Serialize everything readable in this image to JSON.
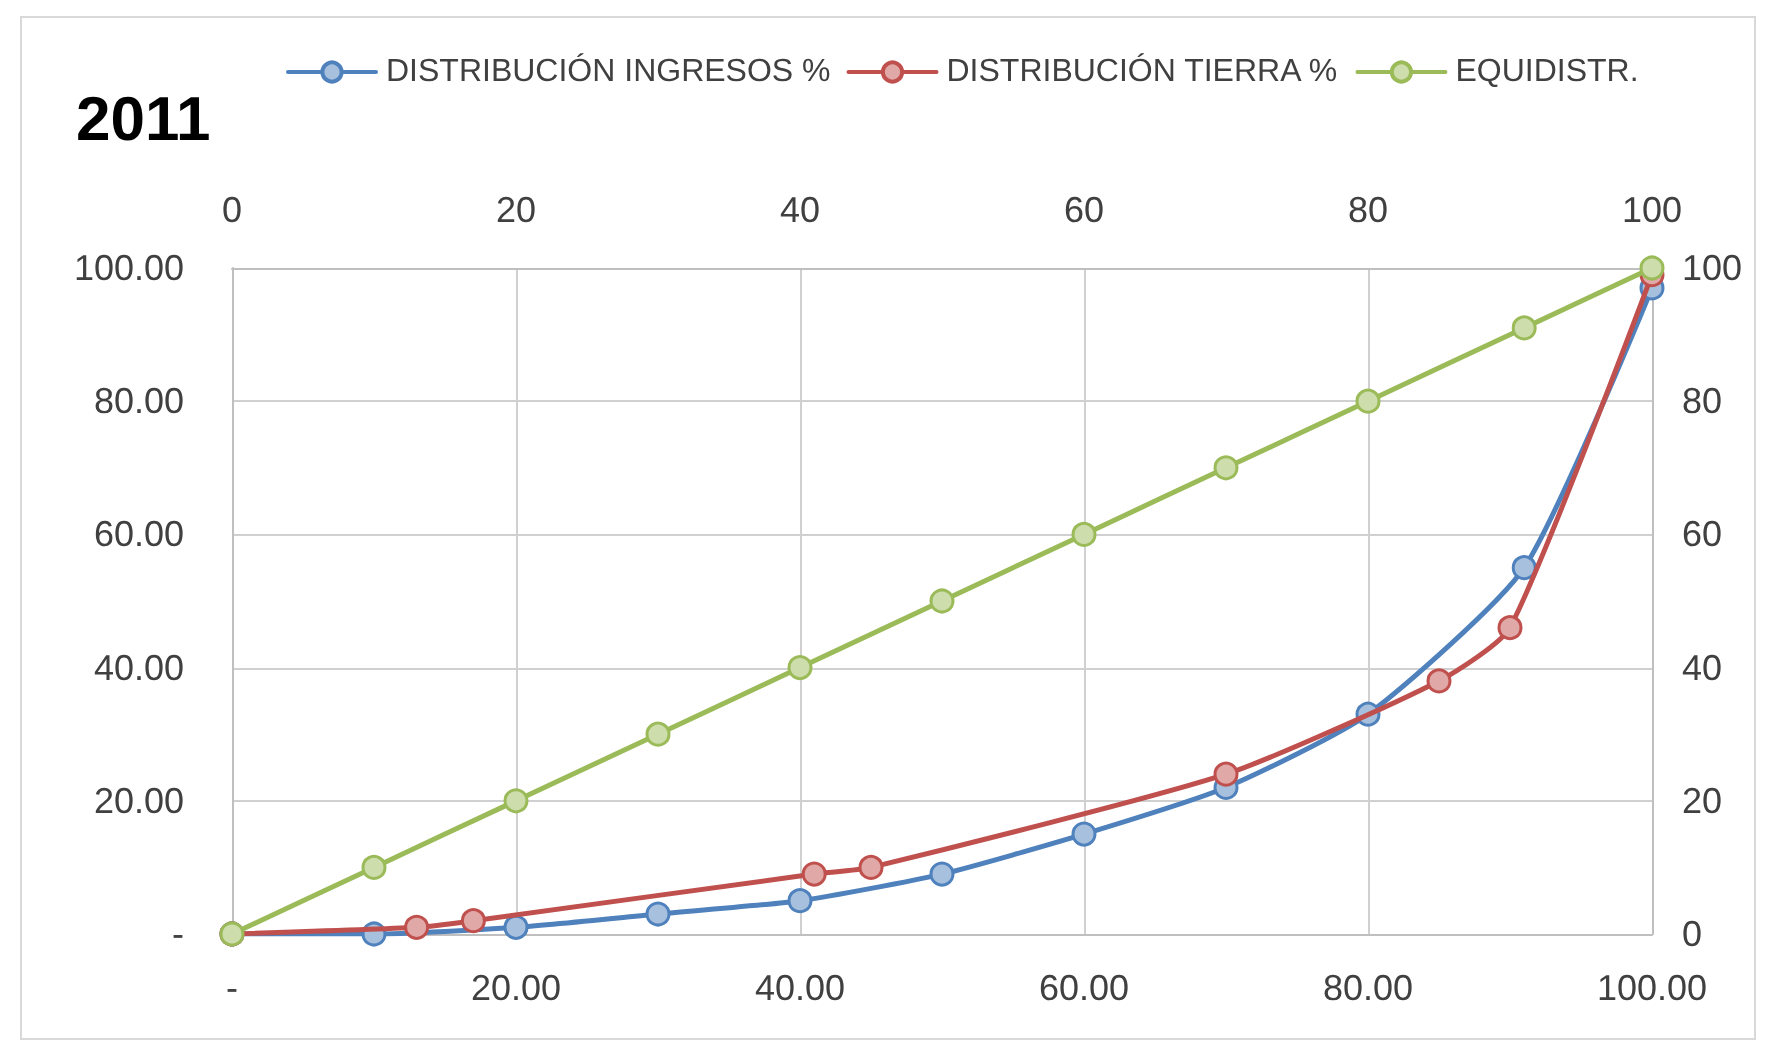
{
  "chart_data": {
    "type": "line",
    "title": "2011",
    "x": [
      0,
      10,
      20,
      30,
      40,
      50,
      60,
      70,
      80,
      91,
      100
    ],
    "series": [
      {
        "name": "DISTRIBUCIÓN INGRESOS %",
        "color": "#4f81bd",
        "values": [
          0,
          0,
          1,
          3,
          5,
          9,
          15,
          22,
          33,
          55,
          97
        ]
      },
      {
        "name": "DISTRIBUCIÓN TIERRA %",
        "color": "#c0504d",
        "x": [
          0,
          13,
          17,
          41,
          45,
          70,
          85,
          90,
          100
        ],
        "values": [
          0,
          1,
          2,
          9,
          10,
          24,
          38,
          46,
          99
        ]
      },
      {
        "name": "EQUIDISTR.",
        "color": "#9bbb59",
        "values": [
          0,
          10,
          20,
          30,
          40,
          50,
          60,
          70,
          80,
          91,
          100
        ]
      }
    ],
    "xlim": [
      0,
      100
    ],
    "xticks": [
      {
        "value": 0,
        "label": "-"
      },
      {
        "value": 20,
        "label": "20.00"
      },
      {
        "value": 40,
        "label": "40.00"
      },
      {
        "value": 60,
        "label": "60.00"
      },
      {
        "value": 80,
        "label": "80.00"
      },
      {
        "value": 100,
        "label": "100.00"
      }
    ],
    "x2lim": [
      0,
      100
    ],
    "x2ticks": [
      0,
      20,
      40,
      60,
      80,
      100
    ],
    "ylim": [
      0,
      100
    ],
    "yticks": [
      {
        "value": 0,
        "label": "-"
      },
      {
        "value": 20,
        "label": "20.00"
      },
      {
        "value": 40,
        "label": "40.00"
      },
      {
        "value": 60,
        "label": "60.00"
      },
      {
        "value": 80,
        "label": "80.00"
      },
      {
        "value": 100,
        "label": "100.00"
      }
    ],
    "y2lim": [
      0,
      100
    ],
    "y2ticks": [
      0,
      20,
      40,
      60,
      80,
      100
    ],
    "grid": true,
    "legend": "top",
    "marker": "circle",
    "line_style": "solid"
  }
}
